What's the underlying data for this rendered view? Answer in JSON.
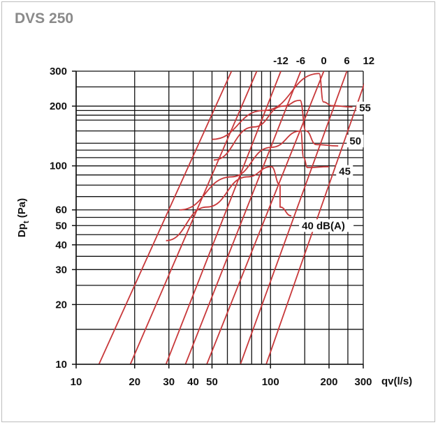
{
  "title": "DVS 250",
  "chart_data": {
    "type": "line",
    "title": "DVS 250",
    "xlabel": "qv(l/s)",
    "ylabel_main": "Dp",
    "ylabel_sub": "t",
    "ylabel_unit": " (Pa)",
    "xscale": "log",
    "yscale": "log",
    "xlim": [
      10,
      300
    ],
    "ylim": [
      10,
      300
    ],
    "grid": true,
    "x_major_ticks": [
      10,
      20,
      30,
      40,
      50,
      100,
      200,
      300
    ],
    "x_minor_ticks": [
      60,
      70,
      80,
      90,
      150,
      250
    ],
    "y_major_ticks": [
      10,
      20,
      30,
      40,
      50,
      60,
      100,
      200,
      300
    ],
    "y_minor_ticks": [
      15,
      25,
      35,
      45,
      55,
      70,
      80,
      90,
      110,
      120,
      130,
      150,
      170,
      180,
      190,
      250
    ],
    "damper_lines": [
      {
        "label": "",
        "points": [
          [
            13.1,
            10
          ],
          [
            63,
            300
          ]
        ]
      },
      {
        "label": "",
        "points": [
          [
            19,
            10
          ],
          [
            85,
            300
          ]
        ]
      },
      {
        "label": "-12",
        "points": [
          [
            29,
            10
          ],
          [
            113,
            300
          ]
        ]
      },
      {
        "label": "-6",
        "points": [
          [
            36.5,
            10
          ],
          [
            143,
            300
          ]
        ]
      },
      {
        "label": "0",
        "points": [
          [
            47,
            10
          ],
          [
            188,
            300
          ]
        ]
      },
      {
        "label": "6",
        "points": [
          [
            70,
            10
          ],
          [
            247,
            300
          ]
        ]
      },
      {
        "label": "12",
        "points": [
          [
            95,
            10
          ],
          [
            320,
            300
          ]
        ]
      }
    ],
    "sound_curves": [
      {
        "label": "40 dB(A)",
        "points": [
          [
            29,
            42
          ],
          [
            47,
            62
          ],
          [
            76,
            88
          ],
          [
            101,
            99
          ],
          [
            112,
            80
          ],
          [
            112,
            62
          ],
          [
            128,
            56
          ]
        ],
        "label_at": [
          145,
          48
        ]
      },
      {
        "label": "45",
        "points": [
          [
            34,
            60
          ],
          [
            63,
            88
          ],
          [
            101,
            124
          ],
          [
            143,
            150
          ],
          [
            148,
            110
          ],
          [
            155,
            98
          ],
          [
            200,
            99
          ]
        ],
        "label_at": [
          225,
          90
        ]
      },
      {
        "label": "50",
        "points": [
          [
            51,
            107
          ],
          [
            82,
            157
          ],
          [
            116,
            200
          ],
          [
            142,
            214
          ],
          [
            152,
            150
          ],
          [
            172,
            128
          ],
          [
            223,
            126
          ]
        ],
        "label_at": [
          255,
          128
        ]
      },
      {
        "label": "55",
        "points": [
          [
            50,
            136
          ],
          [
            92,
            190
          ],
          [
            178,
            292
          ],
          [
            187,
            210
          ],
          [
            207,
            201
          ],
          [
            264,
            198
          ]
        ],
        "label_at": [
          286,
          188
        ]
      }
    ]
  }
}
